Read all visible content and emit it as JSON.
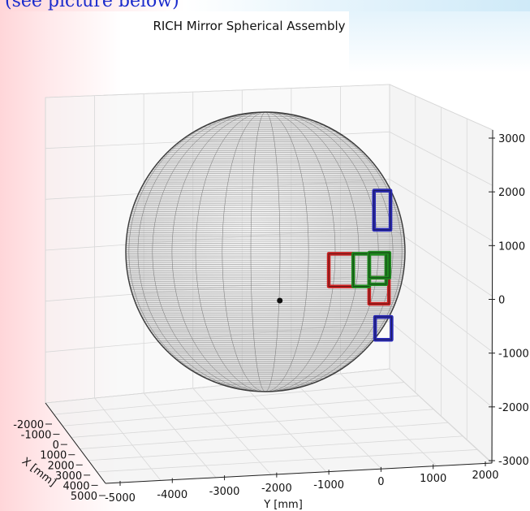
{
  "caption": "(see picture below)",
  "chart_data": {
    "type": "scatter",
    "title": "RICH Mirror Spherical Assembly",
    "xlabel": "X [mm]",
    "ylabel": "Y [mm]",
    "zlabel": "",
    "x_ticks": [
      "-2000",
      "-1000",
      "0",
      "1000",
      "2000",
      "3000",
      "4000",
      "5000"
    ],
    "y_ticks": [
      "-5000",
      "-4000",
      "-3000",
      "-2000",
      "-1000",
      "0",
      "1000",
      "2000"
    ],
    "z_ticks": [
      "-3000",
      "-2000",
      "-1000",
      "0",
      "1000",
      "2000",
      "3000"
    ],
    "ylim": [
      -5000,
      2000
    ],
    "zlim": [
      -3000,
      3000
    ],
    "grid": true,
    "sphere_center": [
      0,
      -2000,
      0
    ],
    "sphere_radius": 2700,
    "mirror_groups": [
      {
        "color": "#cc2222",
        "tiles": [
          {
            "y": [
              -1080,
              -620
            ],
            "z": [
              260,
              860
            ]
          },
          {
            "y": [
              -320,
              50
            ],
            "z": [
              -60,
              420
            ]
          }
        ]
      },
      {
        "color": "#1f8a1f",
        "tiles": [
          {
            "y": [
              -620,
              -320
            ],
            "z": [
              260,
              860
            ]
          },
          {
            "y": [
              -320,
              0
            ],
            "z": [
              300,
              860
            ]
          },
          {
            "y": [
              -320,
              60
            ],
            "z": [
              420,
              880
            ]
          }
        ]
      },
      {
        "color": "#2a2ab8",
        "tiles": [
          {
            "y": [
              -230,
              80
            ],
            "z": [
              1300,
              2020
            ]
          },
          {
            "y": [
              -210,
              100
            ],
            "z": [
              -720,
              -300
            ]
          }
        ]
      }
    ],
    "center_point": {
      "y": -2000,
      "z": 0
    }
  },
  "colors": {
    "sphere": "#555555",
    "grid": "#d8d8d8",
    "edge": "#222222"
  }
}
